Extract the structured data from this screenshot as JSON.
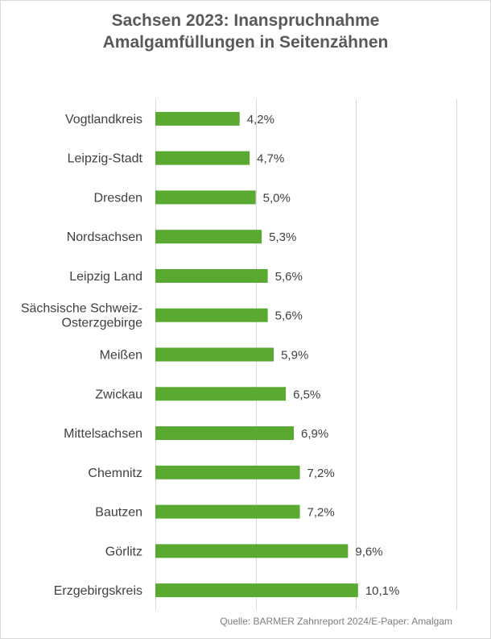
{
  "chart_data": {
    "type": "bar",
    "orientation": "horizontal",
    "title_lines": [
      "Sachsen 2023: Inanspruchnahme",
      "Amalgamfüllungen in Seitenzähnen"
    ],
    "categories": [
      "Vogtlandkreis",
      "Leipzig-Stadt",
      "Dresden",
      "Nordsachsen",
      "Leipzig Land",
      "Sächsische Schweiz-\nOsterzgebirge",
      "Meißen",
      "Zwickau",
      "Mittelsachsen",
      "Chemnitz",
      "Bautzen",
      "Görlitz",
      "Erzgebirgskreis"
    ],
    "values": [
      4.2,
      4.7,
      5.0,
      5.3,
      5.6,
      5.6,
      5.9,
      6.5,
      6.9,
      7.2,
      7.2,
      9.6,
      10.1
    ],
    "value_labels": [
      "4,2%",
      "4,7%",
      "5,0%",
      "5,3%",
      "5,6%",
      "5,6%",
      "5,9%",
      "6,5%",
      "6,9%",
      "7,2%",
      "7,2%",
      "9,6%",
      "10,1%"
    ],
    "xlim": [
      0,
      15
    ],
    "grid": true,
    "legend": "none",
    "bar_color": "#5aaa32"
  },
  "source": "Quelle:  BARMER Zahnreport  2024/E-Paper:  Amalgam"
}
